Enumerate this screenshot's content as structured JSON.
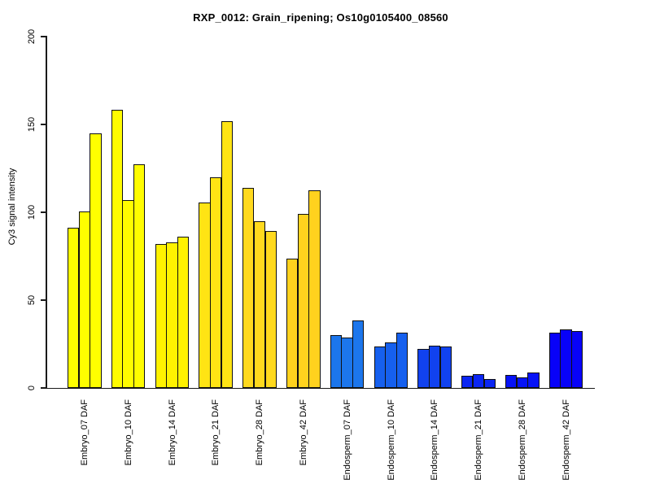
{
  "chart_data": {
    "type": "bar",
    "title": "RXP_0012: Grain_ripening; Os10g0105400_08560",
    "xlabel": "",
    "ylabel": "Cy3 signal intensity",
    "ylim": [
      0,
      200
    ],
    "yticks": [
      0,
      50,
      100,
      150,
      200
    ],
    "grid": false,
    "legend": "none",
    "bars_per_group": 3,
    "groups": [
      {
        "label": "Embryo_07 DAF",
        "color": "#FFFF00",
        "values": [
          91,
          100.5,
          145
        ]
      },
      {
        "label": "Embryo_10 DAF",
        "color": "#FFFC00",
        "values": [
          158.5,
          107,
          127.5
        ]
      },
      {
        "label": "Embryo_14 DAF",
        "color": "#FFF200",
        "values": [
          82,
          83,
          86
        ]
      },
      {
        "label": "Embryo_21 DAF",
        "color": "#FFE414",
        "values": [
          105.5,
          120,
          152
        ]
      },
      {
        "label": "Embryo_28 DAF",
        "color": "#FFD91E",
        "values": [
          114,
          95,
          89.5
        ]
      },
      {
        "label": "Embryo_42 DAF",
        "color": "#FFD21E",
        "values": [
          73.5,
          99,
          112.5
        ]
      },
      {
        "label": "Endosperm_07 DAF",
        "color": "#1C76EC",
        "values": [
          30,
          28.5,
          38.5
        ]
      },
      {
        "label": "Endosperm_10 DAF",
        "color": "#1660EE",
        "values": [
          23.5,
          26,
          31.5
        ]
      },
      {
        "label": "Endosperm_14 DAF",
        "color": "#1142EF",
        "values": [
          22,
          24,
          23.5
        ]
      },
      {
        "label": "Endosperm_21 DAF",
        "color": "#0B26F3",
        "values": [
          7,
          8,
          5
        ]
      },
      {
        "label": "Endosperm_28 DAF",
        "color": "#0713F6",
        "values": [
          7.5,
          6,
          9
        ]
      },
      {
        "label": "Endosperm_42 DAF",
        "color": "#0802F8",
        "values": [
          31.5,
          33.5,
          32.5
        ]
      }
    ]
  }
}
